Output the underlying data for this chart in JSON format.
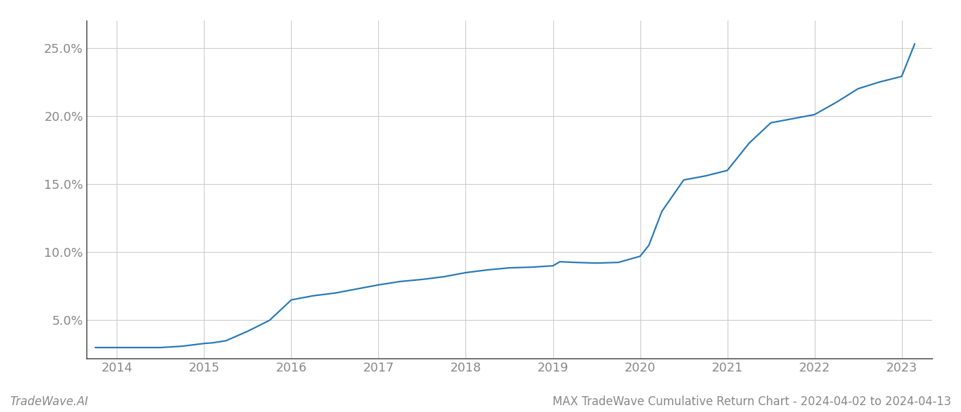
{
  "x_years": [
    2013.75,
    2014.0,
    2014.25,
    2014.5,
    2014.75,
    2015.0,
    2015.1,
    2015.25,
    2015.5,
    2015.75,
    2016.0,
    2016.25,
    2016.5,
    2016.75,
    2017.0,
    2017.25,
    2017.5,
    2017.75,
    2018.0,
    2018.25,
    2018.5,
    2018.75,
    2019.0,
    2019.08,
    2019.25,
    2019.5,
    2019.75,
    2020.0,
    2020.1,
    2020.25,
    2020.5,
    2020.75,
    2021.0,
    2021.25,
    2021.5,
    2021.75,
    2022.0,
    2022.25,
    2022.5,
    2022.75,
    2023.0,
    2023.15
  ],
  "y_values": [
    3.0,
    3.0,
    3.0,
    3.0,
    3.1,
    3.3,
    3.35,
    3.5,
    4.2,
    5.0,
    6.5,
    6.8,
    7.0,
    7.3,
    7.6,
    7.85,
    8.0,
    8.2,
    8.5,
    8.7,
    8.85,
    8.9,
    9.0,
    9.3,
    9.25,
    9.2,
    9.25,
    9.7,
    10.5,
    13.0,
    15.3,
    15.6,
    16.0,
    18.0,
    19.5,
    19.8,
    20.1,
    21.0,
    22.0,
    22.5,
    22.9,
    25.3
  ],
  "line_color": "#2878b5",
  "line_width": 1.6,
  "background_color": "#ffffff",
  "grid_color": "#cccccc",
  "tick_color": "#888888",
  "spine_color": "#333333",
  "x_ticks": [
    2014,
    2015,
    2016,
    2017,
    2018,
    2019,
    2020,
    2021,
    2022,
    2023
  ],
  "y_ticks": [
    5.0,
    10.0,
    15.0,
    20.0,
    25.0
  ],
  "y_min": 2.2,
  "y_max": 27.0,
  "x_min": 2013.65,
  "x_max": 2023.35,
  "footer_left": "TradeWave.AI",
  "footer_right": "MAX TradeWave Cumulative Return Chart - 2024-04-02 to 2024-04-13",
  "footer_color": "#888888",
  "footer_fontsize": 12
}
